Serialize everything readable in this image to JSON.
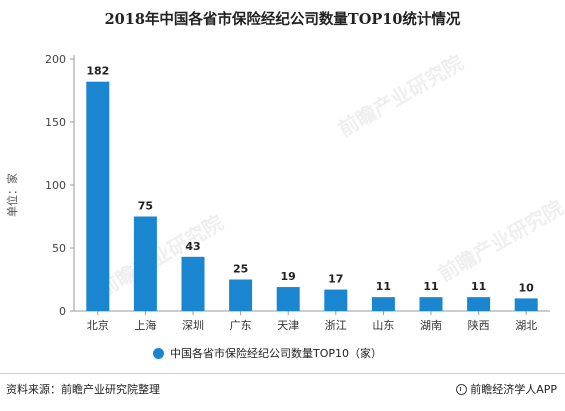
{
  "title": "2018年中国各省市保险经纪公司数量TOP10统计情况",
  "source": "资料来源：前瞻产业研究院整理",
  "brand": "前瞻经济学人APP",
  "watermark": "前瞻产业研究院",
  "chart_data": {
    "type": "bar",
    "title": "2018年中国各省市保险经纪公司数量TOP10统计情况",
    "ylabel": "单位：家",
    "xlabel": "",
    "categories": [
      "北京",
      "上海",
      "深圳",
      "广东",
      "天津",
      "浙江",
      "山东",
      "湖南",
      "陕西",
      "湖北"
    ],
    "series": [
      {
        "name": "中国各省市保险经纪公司数量TOP10（家）",
        "values": [
          182,
          75,
          43,
          25,
          19,
          17,
          11,
          11,
          11,
          10
        ]
      }
    ],
    "yticks": [
      0,
      50,
      100,
      150,
      200
    ],
    "ylim": [
      0,
      200
    ],
    "grid": false,
    "legend": "bottom",
    "color": "#1a86cf"
  }
}
